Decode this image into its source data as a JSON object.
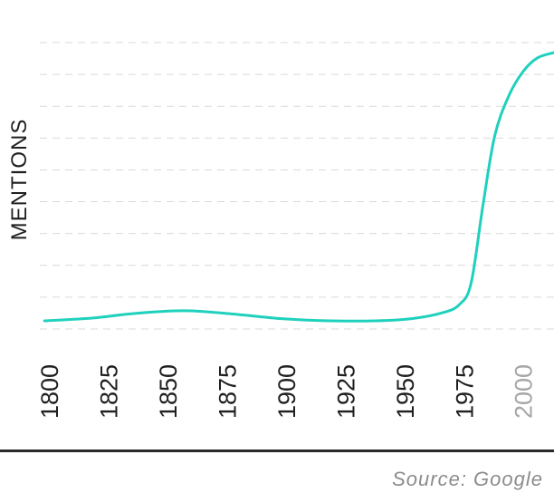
{
  "chart_data": {
    "type": "line",
    "title": "",
    "xlabel": "",
    "ylabel": "MENTIONS",
    "xlim": [
      1798,
      2015
    ],
    "x_ticks": [
      {
        "label": "1800",
        "muted": false
      },
      {
        "label": "1825",
        "muted": false
      },
      {
        "label": "1850",
        "muted": false
      },
      {
        "label": "1875",
        "muted": false
      },
      {
        "label": "1900",
        "muted": false
      },
      {
        "label": "1925",
        "muted": false
      },
      {
        "label": "1950",
        "muted": false
      },
      {
        "label": "1975",
        "muted": false
      },
      {
        "label": "2000",
        "muted": true
      }
    ],
    "y_axis_values_shown": false,
    "y_range_relative": [
      0,
      1
    ],
    "gridlines_count": 10,
    "grid": true,
    "series": [
      {
        "color": "#1fd1bd",
        "points": [
          {
            "x": 1800,
            "y": 0.0
          },
          {
            "x": 1820,
            "y": 0.01
          },
          {
            "x": 1835,
            "y": 0.025
          },
          {
            "x": 1850,
            "y": 0.035
          },
          {
            "x": 1862,
            "y": 0.037
          },
          {
            "x": 1880,
            "y": 0.025
          },
          {
            "x": 1900,
            "y": 0.008
          },
          {
            "x": 1920,
            "y": 0.0
          },
          {
            "x": 1940,
            "y": 0.0
          },
          {
            "x": 1955,
            "y": 0.008
          },
          {
            "x": 1968,
            "y": 0.03
          },
          {
            "x": 1975,
            "y": 0.06
          },
          {
            "x": 1980,
            "y": 0.14
          },
          {
            "x": 1985,
            "y": 0.43
          },
          {
            "x": 1990,
            "y": 0.69
          },
          {
            "x": 1996,
            "y": 0.84
          },
          {
            "x": 2002,
            "y": 0.93
          },
          {
            "x": 2008,
            "y": 0.98
          },
          {
            "x": 2015,
            "y": 1.0
          }
        ]
      }
    ]
  },
  "footer": {
    "source": "Source: Google"
  }
}
